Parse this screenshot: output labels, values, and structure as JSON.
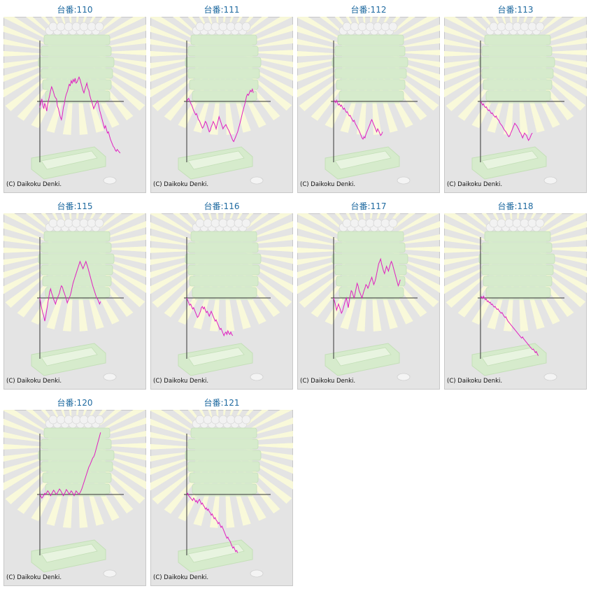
{
  "copyright": "(C) Daikoku Denki.",
  "colors": {
    "line": "#e020c0",
    "axis": "#333333",
    "title": "#1f6aa0",
    "panel_bg": "#e4e4e4",
    "panel_border": "#c8c8c8",
    "machine": "#d6ebcc",
    "rays": "#fbfbd8"
  },
  "chart_data": [
    {
      "type": "line",
      "title": "台番:110",
      "xlabel": "",
      "ylabel": "",
      "x_max": 96,
      "ylim": [
        -1000,
        1000
      ],
      "grid": false,
      "series": [
        {
          "values": [
            -100,
            -20,
            40,
            -60,
            -120,
            -30,
            -80,
            -160,
            -40,
            30,
            100,
            180,
            240,
            200,
            150,
            90,
            60,
            40,
            -80,
            -120,
            -200,
            -260,
            -300,
            -220,
            -100,
            -40,
            60,
            120,
            160,
            220,
            280,
            260,
            340,
            300,
            360,
            320,
            380,
            300,
            320,
            360,
            400,
            360,
            300,
            240,
            180,
            140,
            200,
            250,
            300,
            220,
            180,
            100,
            40,
            0,
            -60,
            -120,
            -80,
            -40,
            -20,
            10,
            -60,
            -140,
            -200,
            -260,
            -320,
            -380,
            -440,
            -400,
            -460,
            -520,
            -500,
            -560,
            -620,
            -660,
            -700,
            -740,
            -760,
            -800,
            -820,
            -790,
            -810,
            -830,
            -850
          ]
        }
      ]
    },
    {
      "type": "line",
      "title": "台番:111",
      "xlabel": "",
      "ylabel": "",
      "x_max": 96,
      "ylim": [
        -1000,
        1000
      ],
      "grid": false,
      "series": [
        {
          "values": [
            0,
            30,
            50,
            10,
            -30,
            -60,
            -100,
            -150,
            -180,
            -220,
            -200,
            -250,
            -300,
            -320,
            -360,
            -400,
            -440,
            -420,
            -380,
            -330,
            -350,
            -400,
            -450,
            -500,
            -480,
            -420,
            -380,
            -330,
            -360,
            -400,
            -450,
            -380,
            -320,
            -250,
            -300,
            -350,
            -400,
            -450,
            -420,
            -400,
            -380,
            -420,
            -450,
            -480,
            -520,
            -560,
            -600,
            -640,
            -660,
            -620,
            -580,
            -540,
            -500,
            -440,
            -380,
            -320,
            -250,
            -180,
            -120,
            -60,
            0,
            80,
            120,
            100,
            140,
            180,
            160,
            200,
            140
          ]
        }
      ]
    },
    {
      "type": "line",
      "title": "台番:112",
      "xlabel": "",
      "ylabel": "",
      "x_max": 96,
      "ylim": [
        -1000,
        1000
      ],
      "grid": false,
      "series": [
        {
          "values": [
            0,
            10,
            -20,
            20,
            -30,
            -60,
            -40,
            -80,
            -60,
            -100,
            -130,
            -110,
            -150,
            -180,
            -170,
            -210,
            -240,
            -230,
            -270,
            -300,
            -330,
            -310,
            -360,
            -390,
            -420,
            -450,
            -480,
            -520,
            -560,
            -600,
            -620,
            -580,
            -600,
            -540,
            -500,
            -460,
            -420,
            -380,
            -330,
            -300,
            -340,
            -380,
            -420,
            -460,
            -500,
            -450,
            -480,
            -520,
            -560,
            -540,
            -500
          ]
        }
      ]
    },
    {
      "type": "line",
      "title": "台番:113",
      "xlabel": "",
      "ylabel": "",
      "x_max": 96,
      "ylim": [
        -1000,
        1000
      ],
      "grid": false,
      "series": [
        {
          "values": [
            0,
            -20,
            -60,
            -40,
            -80,
            -100,
            -90,
            -130,
            -150,
            -140,
            -170,
            -200,
            -190,
            -220,
            -240,
            -260,
            -240,
            -280,
            -300,
            -320,
            -360,
            -380,
            -400,
            -430,
            -460,
            -480,
            -500,
            -530,
            -560,
            -580,
            -560,
            -520,
            -480,
            -440,
            -400,
            -360,
            -380,
            -400,
            -430,
            -460,
            -500,
            -520,
            -560,
            -600,
            -560,
            -520,
            -540,
            -560,
            -600,
            -640,
            -620,
            -580,
            -540,
            -520
          ]
        }
      ]
    },
    {
      "type": "line",
      "title": "台番:115",
      "xlabel": "",
      "ylabel": "",
      "x_max": 96,
      "ylim": [
        -1000,
        1000
      ],
      "grid": false,
      "series": [
        {
          "values": [
            0,
            -100,
            -180,
            -250,
            -300,
            -380,
            -300,
            -200,
            -100,
            0,
            100,
            150,
            80,
            40,
            -20,
            -60,
            -100,
            -40,
            0,
            40,
            80,
            150,
            200,
            180,
            120,
            80,
            30,
            -20,
            -80,
            -40,
            0,
            40,
            100,
            180,
            250,
            300,
            350,
            400,
            450,
            500,
            550,
            600,
            560,
            520,
            480,
            520,
            560,
            600,
            550,
            500,
            440,
            380,
            320,
            260,
            200,
            150,
            100,
            50,
            0,
            -20,
            -60,
            -100,
            -60
          ]
        }
      ]
    },
    {
      "type": "line",
      "title": "台番:116",
      "xlabel": "",
      "ylabel": "",
      "x_max": 96,
      "ylim": [
        -1000,
        1000
      ],
      "grid": false,
      "series": [
        {
          "values": [
            0,
            -40,
            -80,
            -120,
            -100,
            -140,
            -180,
            -160,
            -200,
            -240,
            -280,
            -320,
            -300,
            -260,
            -220,
            -160,
            -140,
            -180,
            -150,
            -200,
            -240,
            -220,
            -260,
            -300,
            -260,
            -220,
            -260,
            -300,
            -340,
            -380,
            -360,
            -400,
            -440,
            -480,
            -520,
            -500,
            -540,
            -580,
            -620,
            -580,
            -560,
            -600,
            -540,
            -580,
            -600,
            -560,
            -600,
            -620
          ]
        }
      ]
    },
    {
      "type": "line",
      "title": "台番:117",
      "xlabel": "",
      "ylabel": "",
      "x_max": 96,
      "ylim": [
        -1000,
        1000
      ],
      "grid": false,
      "series": [
        {
          "values": [
            0,
            -60,
            -120,
            -200,
            -150,
            -100,
            -150,
            -200,
            -250,
            -220,
            -160,
            -100,
            -40,
            0,
            -80,
            -160,
            -40,
            40,
            120,
            100,
            40,
            0,
            80,
            160,
            240,
            200,
            120,
            80,
            40,
            0,
            60,
            120,
            160,
            220,
            200,
            160,
            200,
            260,
            300,
            340,
            280,
            220,
            260,
            320,
            400,
            480,
            560,
            600,
            640,
            560,
            500,
            440,
            400,
            460,
            520,
            480,
            440,
            500,
            560,
            600,
            560,
            500,
            440,
            380,
            320,
            260,
            200,
            240,
            300
          ]
        }
      ]
    },
    {
      "type": "line",
      "title": "台番:118",
      "xlabel": "",
      "ylabel": "",
      "x_max": 96,
      "ylim": [
        -1000,
        1000
      ],
      "grid": false,
      "series": [
        {
          "values": [
            0,
            20,
            -10,
            30,
            0,
            -30,
            -20,
            -60,
            -50,
            -80,
            -70,
            -110,
            -100,
            -130,
            -150,
            -140,
            -170,
            -190,
            -180,
            -210,
            -230,
            -250,
            -240,
            -270,
            -300,
            -320,
            -310,
            -350,
            -380,
            -400,
            -420,
            -440,
            -460,
            -480,
            -500,
            -520,
            -540,
            -560,
            -580,
            -600,
            -620,
            -640,
            -660,
            -640,
            -670,
            -690,
            -710,
            -730,
            -750,
            -770,
            -790,
            -810,
            -830,
            -850,
            -840,
            -870,
            -900,
            -880,
            -920,
            -950
          ]
        }
      ]
    },
    {
      "type": "line",
      "title": "台番:120",
      "xlabel": "",
      "ylabel": "",
      "x_max": 96,
      "ylim": [
        -1000,
        1000
      ],
      "grid": false,
      "series": [
        {
          "values": [
            0,
            -30,
            -60,
            -40,
            -10,
            20,
            0,
            30,
            60,
            40,
            10,
            -20,
            10,
            40,
            70,
            50,
            20,
            0,
            30,
            60,
            90,
            70,
            40,
            10,
            -20,
            10,
            40,
            80,
            60,
            30,
            0,
            30,
            60,
            40,
            10,
            -20,
            20,
            60,
            40,
            20,
            0,
            30,
            60,
            100,
            150,
            200,
            250,
            300,
            350,
            400,
            450,
            480,
            520,
            560,
            600,
            620,
            660,
            720,
            780,
            840,
            900,
            960,
            1020
          ]
        }
      ]
    },
    {
      "type": "line",
      "title": "台番:121",
      "xlabel": "",
      "ylabel": "",
      "x_max": 96,
      "ylim": [
        -1000,
        1000
      ],
      "grid": false,
      "series": [
        {
          "values": [
            0,
            20,
            -20,
            -40,
            -60,
            -80,
            -100,
            -60,
            -80,
            -120,
            -100,
            -140,
            -100,
            -80,
            -120,
            -160,
            -140,
            -180,
            -200,
            -240,
            -220,
            -260,
            -240,
            -280,
            -300,
            -340,
            -320,
            -360,
            -400,
            -380,
            -420,
            -440,
            -480,
            -460,
            -500,
            -540,
            -520,
            -560,
            -600,
            -640,
            -680,
            -720,
            -700,
            -740,
            -760,
            -800,
            -840,
            -880,
            -860,
            -900,
            -940,
            -920,
            -960
          ]
        }
      ]
    }
  ]
}
